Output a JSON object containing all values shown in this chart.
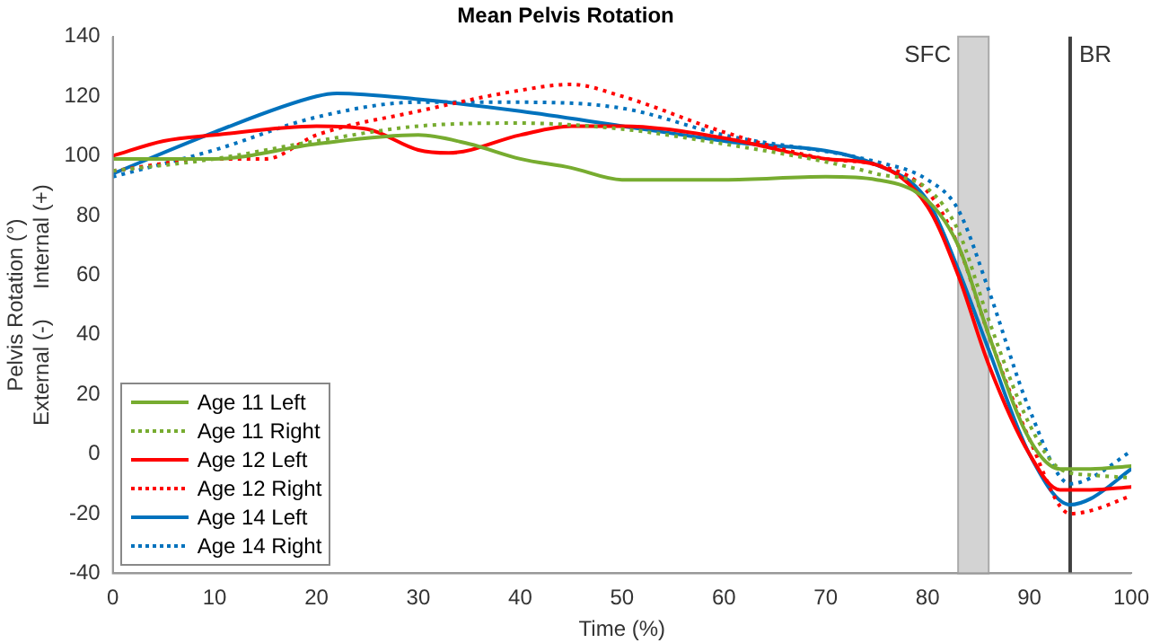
{
  "chart_data": {
    "type": "line",
    "title": "Mean Pelvis Rotation",
    "xlabel": "Time (%)",
    "ylabel": "Pelvis Rotation (°)\nExternal (-)     Internal (+)",
    "xlim": [
      0,
      100
    ],
    "xticks": [
      0,
      10,
      20,
      30,
      40,
      50,
      60,
      70,
      80,
      90,
      100
    ],
    "ylim": [
      -40,
      140
    ],
    "yticks": [
      -40,
      -20,
      0,
      20,
      40,
      60,
      80,
      100,
      120,
      140
    ],
    "grid": false,
    "legend": "bottom left",
    "marker": "none",
    "series": [
      {
        "name": "Age 11 Left",
        "color": "#77ac30",
        "line_style": "solid",
        "x": [
          0,
          10,
          20,
          30,
          35,
          40,
          45,
          50,
          60,
          70,
          75,
          80,
          83,
          86,
          90,
          93,
          96,
          100
        ],
        "values": [
          99,
          99,
          104,
          107,
          104,
          99,
          96,
          92,
          92,
          93,
          92,
          85,
          70,
          40,
          5,
          -5,
          -5,
          -4
        ]
      },
      {
        "name": "Age 11 Right",
        "color": "#77ac30",
        "line_style": "dotted",
        "x": [
          0,
          10,
          20,
          30,
          40,
          50,
          60,
          70,
          75,
          80,
          83,
          86,
          90,
          93,
          96,
          100
        ],
        "values": [
          95,
          99,
          105,
          110,
          111,
          109,
          104,
          98,
          94,
          89,
          75,
          45,
          10,
          -5,
          -7,
          -8
        ]
      },
      {
        "name": "Age 12 Left",
        "color": "#ff0000",
        "line_style": "solid",
        "x": [
          0,
          5,
          10,
          20,
          25,
          30,
          33,
          40,
          45,
          50,
          60,
          70,
          75,
          80,
          83,
          86,
          90,
          93,
          96,
          100
        ],
        "values": [
          100,
          105,
          107,
          110,
          109,
          102,
          101,
          107,
          110,
          110,
          106,
          99,
          97,
          83,
          60,
          30,
          0,
          -12,
          -12,
          -11
        ]
      },
      {
        "name": "Age 12 Right",
        "color": "#ff0000",
        "line_style": "dotted",
        "x": [
          0,
          10,
          15,
          20,
          30,
          40,
          45,
          50,
          60,
          70,
          75,
          80,
          83,
          86,
          90,
          94,
          96,
          100
        ],
        "values": [
          95,
          99,
          99,
          107,
          115,
          122,
          124,
          120,
          108,
          99,
          97,
          88,
          70,
          40,
          5,
          -20,
          -19,
          -14
        ]
      },
      {
        "name": "Age 14 Left",
        "color": "#0072bd",
        "line_style": "solid",
        "x": [
          0,
          10,
          20,
          22,
          30,
          40,
          50,
          60,
          75,
          80,
          83,
          86,
          90,
          94,
          96,
          100
        ],
        "values": [
          94,
          108,
          120,
          121,
          119,
          115,
          110,
          105,
          97,
          85,
          62,
          35,
          0,
          -17,
          -15,
          -5
        ]
      },
      {
        "name": "Age 14 Right",
        "color": "#0072bd",
        "line_style": "dotted",
        "x": [
          0,
          10,
          20,
          30,
          40,
          50,
          60,
          75,
          80,
          83,
          86,
          90,
          94,
          96,
          100
        ],
        "values": [
          93,
          102,
          113,
          118,
          118,
          116,
          107,
          98,
          92,
          82,
          55,
          15,
          -10,
          -8,
          1
        ]
      }
    ],
    "bands": [
      {
        "axis": "x",
        "from": 83,
        "to": 86,
        "label": "SFC",
        "color": "#d3d3d3"
      }
    ],
    "ref_lines": [
      {
        "axis": "x",
        "value": 94,
        "label": "BR",
        "color": "#404040"
      }
    ]
  }
}
